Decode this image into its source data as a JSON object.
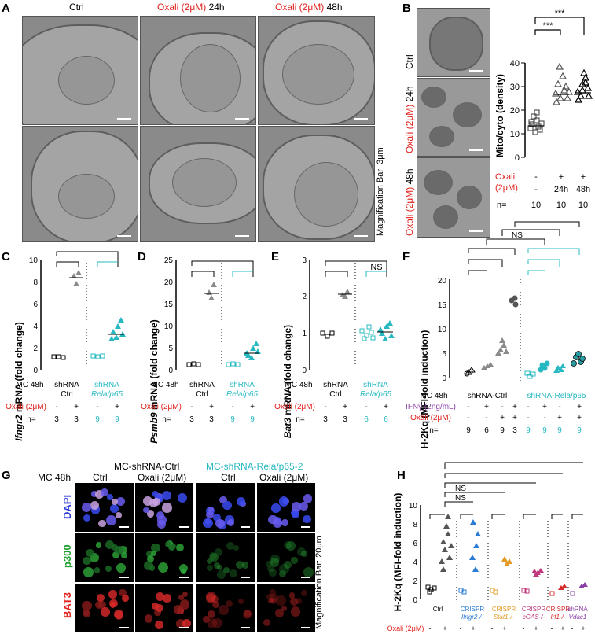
{
  "panels": {
    "A": {
      "label": "A",
      "headers": {
        "ctrl": "Ctrl",
        "oxali_24": "Oxali (2μM)",
        "oxali_24_time": " 24h",
        "oxali_48": "Oxali (2μM)",
        "oxali_48_time": " 48h"
      },
      "scale": "Magnification Bar: 3μm"
    },
    "B": {
      "label": "B",
      "row_labels": {
        "ctrl": "Ctrl",
        "oxali24": "Oxali (2μM)",
        "oxali24_time": " 24h",
        "oxali48": "Oxali (2μM)",
        "oxali48_time": " 48h"
      },
      "ylabel": "Mito/cyto (density)",
      "yticks": [
        "0",
        "10",
        "20",
        "30",
        "40"
      ],
      "sig": [
        "***",
        "***"
      ],
      "cond_label": "Oxali",
      "cond_label2": "(2μM)",
      "cond_signs": [
        "-",
        "+",
        "+"
      ],
      "time_signs": [
        "-",
        "24h",
        "48h"
      ],
      "n_label": "n=",
      "n_values": [
        "10",
        "10",
        "10"
      ]
    },
    "C": {
      "label": "C",
      "ylabel_gene": "Ifngr2",
      "ylabel_rest": " mRNA (fold change)",
      "yticks": [
        "0",
        "2",
        "4",
        "6",
        "8",
        "10"
      ]
    },
    "D": {
      "label": "D",
      "ylabel_gene": "Psmb9",
      "ylabel_rest": " mRNA (fold change)",
      "yticks": [
        "0",
        "5",
        "10",
        "15",
        "20",
        "25"
      ]
    },
    "E": {
      "label": "E",
      "ylabel_gene": "Bat3",
      "ylabel_rest": " mRNA (fold change)",
      "yticks": [
        "0",
        "1",
        "2",
        "3"
      ],
      "ns": "NS"
    },
    "small_common": {
      "mc": "MC 48h",
      "oxali": "Oxali (2μM)",
      "n": "n=",
      "shrna": "shRNA",
      "ctrl": "Ctrl",
      "rela": "Rela/p65",
      "signs": [
        "-",
        "+",
        "-",
        "+"
      ],
      "n_C": [
        "3",
        "3",
        "9",
        "9"
      ],
      "n_D": [
        "3",
        "3",
        "9",
        "9"
      ],
      "n_E": [
        "3",
        "3",
        "6",
        "6"
      ]
    },
    "F": {
      "label": "F",
      "ylabel": "H-2Kq (MFI-fold induction)",
      "yticks": [
        "0",
        "5",
        "10",
        "15",
        "20"
      ],
      "ns": "NS",
      "mc": "MC 48h",
      "grp_ctrl": "shRNA-Ctrl",
      "grp_rela": "shRNA-Rela/p65",
      "ifn": "IFNγ (2ng/mL)",
      "oxali": "Oxali (2μM)",
      "n": "n=",
      "ifn_signs": [
        "-",
        "+",
        "-",
        "+",
        "-",
        "+",
        "-",
        "+"
      ],
      "ox_signs": [
        "-",
        "-",
        "+",
        "+",
        "-",
        "-",
        "+",
        "+"
      ],
      "n_values": [
        "9",
        "6",
        "9",
        "3",
        "9",
        "9",
        "9",
        "9"
      ]
    },
    "G": {
      "label": "G",
      "mc": "MC 48h",
      "grp1": "MC-shRNA-Ctrl",
      "grp2": "MC-shRNA-Rela/p65-2",
      "cols": [
        "Ctrl",
        "Oxali (2μM)",
        "Ctrl",
        "Oxali (2μM)"
      ],
      "rows": [
        "DAPI",
        "p300",
        "BAT3"
      ],
      "scale": "Magnification Bar: 20μm"
    },
    "H": {
      "label": "H",
      "ylabel": "H-2Kq (MFI-fold induction)",
      "yticks": [
        "0",
        "2",
        "4",
        "6",
        "8",
        "10"
      ],
      "ns": [
        "NS",
        "NS"
      ],
      "groups": [
        {
          "line1": "Ctrl",
          "line2": "",
          "color": "#000000"
        },
        {
          "line1": "CRISPR",
          "line2": "Ifngr2-/-",
          "color": "#2a7bd4"
        },
        {
          "line1": "CRISPR",
          "line2": "Stat1-/-",
          "color": "#e39b24"
        },
        {
          "line1": "CRISPR",
          "line2": "cGAS-/-",
          "color": "#c0397d"
        },
        {
          "line1": "CRISPR",
          "line2": "Irf1-/-",
          "color": "#d52b2b"
        },
        {
          "line1": "shRNA",
          "line2": "Vdac1",
          "color": "#8b3fa6"
        }
      ],
      "oxali": "Oxali (2μM)",
      "signs": [
        "-",
        "+",
        "-",
        "+",
        "-",
        "+",
        "-",
        "+",
        "-",
        "+",
        "-",
        "+"
      ]
    }
  },
  "colors": {
    "red": "#e0201b",
    "teal": "#27b8c2",
    "grey": "#8a8a8a"
  }
}
